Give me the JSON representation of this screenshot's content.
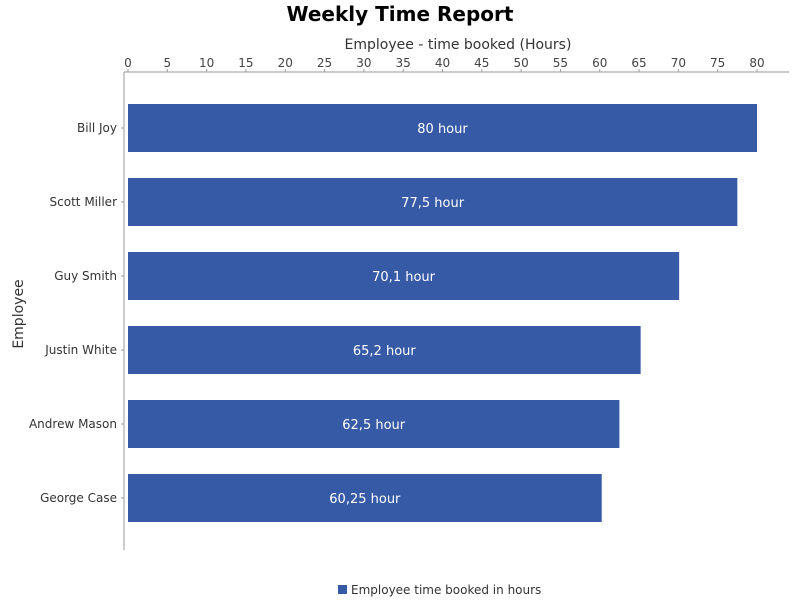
{
  "chart_data": {
    "type": "bar",
    "orientation": "horizontal",
    "title": "Weekly Time Report",
    "xlabel": "Employee - time booked (Hours)",
    "ylabel": "Employee",
    "xlim": [
      0,
      80
    ],
    "x_ticks": [
      0,
      5,
      10,
      15,
      20,
      25,
      30,
      35,
      40,
      45,
      50,
      55,
      60,
      65,
      70,
      75,
      80
    ],
    "x_axis_position": "top",
    "grid": false,
    "legend_position": "bottom",
    "categories": [
      "Bill Joy",
      "Scott Miller",
      "Guy Smith",
      "Justin White",
      "Andrew Mason",
      "George Case"
    ],
    "series": [
      {
        "name": "Employee time booked in hours",
        "color": "#365aa6",
        "values": [
          80,
          77.5,
          70.1,
          65.2,
          62.5,
          60.25
        ],
        "data_labels": [
          "80 hour",
          "77,5 hour",
          "70,1 hour",
          "65,2 hour",
          "62,5 hour",
          "60,25 hour"
        ]
      }
    ]
  }
}
